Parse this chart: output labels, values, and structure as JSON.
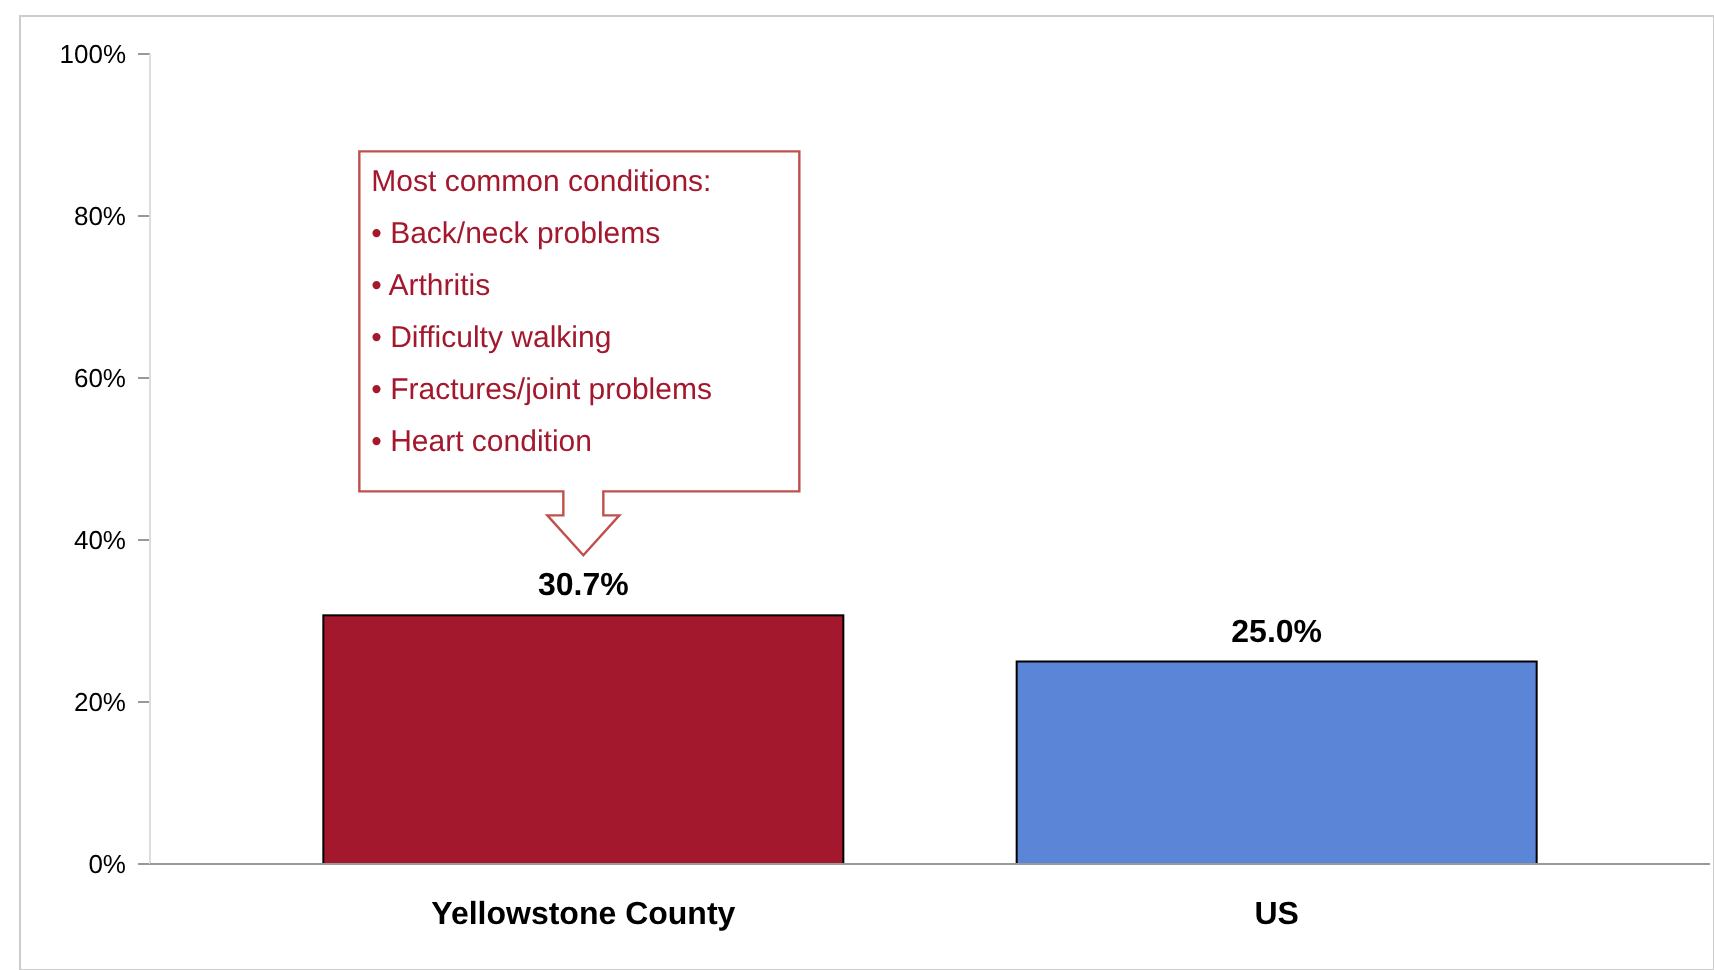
{
  "chart_data": {
    "type": "bar",
    "categories": [
      "Yellowstone County",
      "US"
    ],
    "values": [
      30.7,
      25.0
    ],
    "colors": [
      "#a3182d",
      "#5b85d6"
    ],
    "value_labels": [
      "30.7%",
      "25.0%"
    ],
    "ylim": [
      0,
      100
    ],
    "yticks": [
      {
        "value": 0,
        "label": "0%"
      },
      {
        "value": 20,
        "label": "20%"
      },
      {
        "value": 40,
        "label": "40%"
      },
      {
        "value": 60,
        "label": "60%"
      },
      {
        "value": 80,
        "label": "80%"
      },
      {
        "value": 100,
        "label": "100%"
      }
    ],
    "annotations": [
      "Most common conditions:\n• Back/neck problems\n• Arthritis\n• Difficulty walking\n• Fractures/joint problems\n• Heart condition"
    ]
  }
}
